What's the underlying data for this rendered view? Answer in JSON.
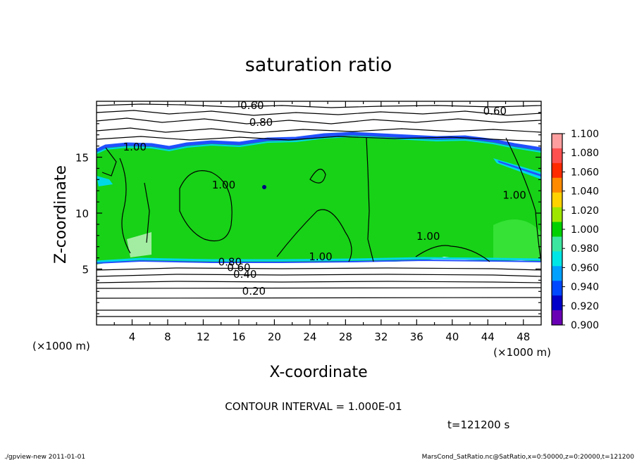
{
  "chart_data": {
    "type": "heatmap",
    "title": "saturation ratio",
    "xlabel": "X-coordinate",
    "ylabel": "Z-coordinate",
    "x_unit": "(×1000 m)",
    "z_unit": "(×1000 m)",
    "xlim": [
      0,
      50
    ],
    "ylim": [
      0,
      20
    ],
    "x_ticks": [
      4,
      8,
      12,
      16,
      20,
      24,
      28,
      32,
      36,
      40,
      44,
      48
    ],
    "y_ticks": [
      5,
      10,
      15
    ],
    "contour_interval_text": "CONTOUR INTERVAL = 1.000E-01",
    "time_text": "t=121200 s",
    "footer_left": "./gpview-new  2011-01-01",
    "footer_right": "MarsCond_SatRatio.nc@SatRatio,x=0:50000,z=0:20000,t=121200",
    "contour_labels": [
      {
        "text": "0.60",
        "x": 17.5,
        "z": 19.3
      },
      {
        "text": "0.60",
        "x": 44.8,
        "z": 18.8
      },
      {
        "text": "0.80",
        "x": 18.5,
        "z": 17.8
      },
      {
        "text": "1.00",
        "x": 4.3,
        "z": 15.6
      },
      {
        "text": "1.00",
        "x": 14.3,
        "z": 12.2
      },
      {
        "text": "1.00",
        "x": 47.0,
        "z": 11.3
      },
      {
        "text": "1.00",
        "x": 37.3,
        "z": 7.6
      },
      {
        "text": "1.00",
        "x": 25.2,
        "z": 5.8
      },
      {
        "text": "0.80",
        "x": 15.0,
        "z": 5.3
      },
      {
        "text": "0.60",
        "x": 16.0,
        "z": 4.8
      },
      {
        "text": "0.40",
        "x": 16.7,
        "z": 4.2
      },
      {
        "text": "0.20",
        "x": 17.7,
        "z": 2.7
      }
    ],
    "colorbar": {
      "values": [
        "1.100",
        "1.080",
        "1.060",
        "1.040",
        "1.020",
        "1.000",
        "0.980",
        "0.960",
        "0.940",
        "0.920",
        "0.900"
      ],
      "colors": [
        "#ff9e9e",
        "#ff5050",
        "#ff2a00",
        "#ff8a00",
        "#ffd200",
        "#9ee600",
        "#00d000",
        "#3ce6a0",
        "#00e6e6",
        "#00a0ff",
        "#0048ff",
        "#0000c8",
        "#6a00b4"
      ]
    },
    "colors": {
      "field_main": "#17d217",
      "field_light": "#3fe63f",
      "edge_cyan": "#00d8e6",
      "edge_blue": "#2050ff",
      "contour": "#000000"
    }
  }
}
